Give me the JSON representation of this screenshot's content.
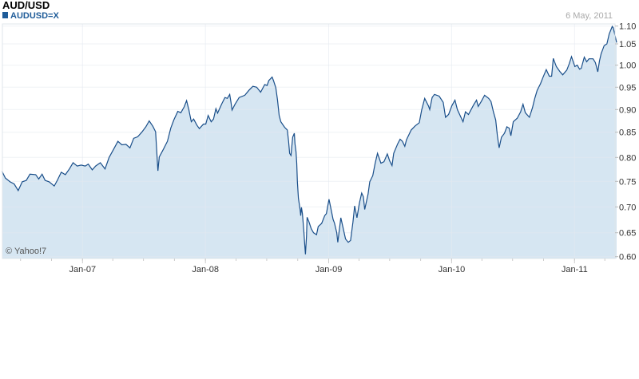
{
  "header": {
    "title": "AUD/USD",
    "symbol": "AUDUSD=X",
    "date": "6 May, 2011",
    "copyright": "© Yahoo!7"
  },
  "colors": {
    "line": "#1a4f8a",
    "fill": "#d6e6f2",
    "grid": "#e4eaf0",
    "legend_square": "#1f5c99"
  },
  "chart_data": {
    "type": "area",
    "title": "AUD/USD",
    "legend": [
      "AUDUSD=X"
    ],
    "legend_placement": "top-left",
    "grid": true,
    "ylim": [
      0.6,
      1.1
    ],
    "yticks": [
      "0.60",
      "0.65",
      "0.70",
      "0.75",
      "0.80",
      "0.85",
      "0.90",
      "0.95",
      "1.00",
      "1.05",
      "1.10"
    ],
    "xticks": [
      "Jan-07",
      "Jan-08",
      "Jan-09",
      "Jan-10",
      "Jan-11"
    ],
    "xlim": [
      "2006-05-07",
      "2011-05-06"
    ],
    "series": [
      {
        "points": [
          [
            "2006-05-07",
            0.771
          ],
          [
            "2006-05-17",
            0.757
          ],
          [
            "2006-05-31",
            0.749
          ],
          [
            "2006-06-12",
            0.745
          ],
          [
            "2006-06-24",
            0.732
          ],
          [
            "2006-07-06",
            0.749
          ],
          [
            "2006-07-18",
            0.752
          ],
          [
            "2006-07-29",
            0.765
          ],
          [
            "2006-08-15",
            0.764
          ],
          [
            "2006-08-24",
            0.755
          ],
          [
            "2006-09-03",
            0.765
          ],
          [
            "2006-09-12",
            0.752
          ],
          [
            "2006-09-24",
            0.749
          ],
          [
            "2006-10-09",
            0.741
          ],
          [
            "2006-10-18",
            0.752
          ],
          [
            "2006-10-30",
            0.769
          ],
          [
            "2006-11-11",
            0.764
          ],
          [
            "2006-11-23",
            0.776
          ],
          [
            "2006-12-04",
            0.789
          ],
          [
            "2006-12-16",
            0.782
          ],
          [
            "2006-12-28",
            0.784
          ],
          [
            "2007-01-09",
            0.782
          ],
          [
            "2007-01-18",
            0.786
          ],
          [
            "2007-01-30",
            0.774
          ],
          [
            "2007-02-09",
            0.782
          ],
          [
            "2007-02-23",
            0.789
          ],
          [
            "2007-03-09",
            0.776
          ],
          [
            "2007-03-21",
            0.8
          ],
          [
            "2007-04-04",
            0.817
          ],
          [
            "2007-04-16",
            0.832
          ],
          [
            "2007-04-28",
            0.825
          ],
          [
            "2007-05-10",
            0.826
          ],
          [
            "2007-05-22",
            0.819
          ],
          [
            "2007-06-02",
            0.838
          ],
          [
            "2007-06-14",
            0.841
          ],
          [
            "2007-06-26",
            0.85
          ],
          [
            "2007-07-08",
            0.862
          ],
          [
            "2007-07-18",
            0.875
          ],
          [
            "2007-07-29",
            0.863
          ],
          [
            "2007-08-06",
            0.851
          ],
          [
            "2007-08-13",
            0.772
          ],
          [
            "2007-08-17",
            0.801
          ],
          [
            "2007-08-29",
            0.816
          ],
          [
            "2007-09-10",
            0.832
          ],
          [
            "2007-09-20",
            0.859
          ],
          [
            "2007-09-29",
            0.877
          ],
          [
            "2007-10-11",
            0.896
          ],
          [
            "2007-10-20",
            0.893
          ],
          [
            "2007-10-30",
            0.906
          ],
          [
            "2007-11-06",
            0.92
          ],
          [
            "2007-11-13",
            0.899
          ],
          [
            "2007-11-20",
            0.873
          ],
          [
            "2007-11-27",
            0.879
          ],
          [
            "2007-12-07",
            0.865
          ],
          [
            "2007-12-14",
            0.858
          ],
          [
            "2007-12-26",
            0.868
          ],
          [
            "2008-01-02",
            0.868
          ],
          [
            "2008-01-09",
            0.887
          ],
          [
            "2008-01-18",
            0.873
          ],
          [
            "2008-01-25",
            0.879
          ],
          [
            "2008-02-01",
            0.902
          ],
          [
            "2008-02-06",
            0.892
          ],
          [
            "2008-02-18",
            0.912
          ],
          [
            "2008-02-28",
            0.927
          ],
          [
            "2008-03-06",
            0.925
          ],
          [
            "2008-03-13",
            0.934
          ],
          [
            "2008-03-17",
            0.916
          ],
          [
            "2008-03-20",
            0.899
          ],
          [
            "2008-03-29",
            0.912
          ],
          [
            "2008-04-10",
            0.927
          ],
          [
            "2008-04-27",
            0.932
          ],
          [
            "2008-05-09",
            0.943
          ],
          [
            "2008-05-21",
            0.952
          ],
          [
            "2008-06-01",
            0.95
          ],
          [
            "2008-06-13",
            0.939
          ],
          [
            "2008-06-25",
            0.956
          ],
          [
            "2008-07-02",
            0.954
          ],
          [
            "2008-07-07",
            0.965
          ],
          [
            "2008-07-17",
            0.973
          ],
          [
            "2008-07-21",
            0.965
          ],
          [
            "2008-07-28",
            0.949
          ],
          [
            "2008-08-02",
            0.922
          ],
          [
            "2008-08-07",
            0.887
          ],
          [
            "2008-08-12",
            0.873
          ],
          [
            "2008-08-23",
            0.861
          ],
          [
            "2008-08-31",
            0.855
          ],
          [
            "2008-09-04",
            0.832
          ],
          [
            "2008-09-07",
            0.808
          ],
          [
            "2008-09-11",
            0.804
          ],
          [
            "2008-09-16",
            0.84
          ],
          [
            "2008-09-21",
            0.848
          ],
          [
            "2008-09-23",
            0.827
          ],
          [
            "2008-09-26",
            0.811
          ],
          [
            "2008-09-28",
            0.788
          ],
          [
            "2008-09-30",
            0.75
          ],
          [
            "2008-10-03",
            0.717
          ],
          [
            "2008-10-08",
            0.695
          ],
          [
            "2008-10-10",
            0.683
          ],
          [
            "2008-10-12",
            0.699
          ],
          [
            "2008-10-15",
            0.687
          ],
          [
            "2008-10-19",
            0.655
          ],
          [
            "2008-10-22",
            0.623
          ],
          [
            "2008-10-24",
            0.605
          ],
          [
            "2008-10-27",
            0.642
          ],
          [
            "2008-10-29",
            0.68
          ],
          [
            "2008-11-03",
            0.672
          ],
          [
            "2008-11-10",
            0.658
          ],
          [
            "2008-11-17",
            0.65
          ],
          [
            "2008-11-26",
            0.646
          ],
          [
            "2008-12-01",
            0.662
          ],
          [
            "2008-12-11",
            0.668
          ],
          [
            "2008-12-20",
            0.683
          ],
          [
            "2008-12-25",
            0.687
          ],
          [
            "2009-01-02",
            0.715
          ],
          [
            "2009-01-06",
            0.702
          ],
          [
            "2009-01-14",
            0.676
          ],
          [
            "2009-01-18",
            0.669
          ],
          [
            "2009-01-25",
            0.65
          ],
          [
            "2009-01-28",
            0.63
          ],
          [
            "2009-02-06",
            0.679
          ],
          [
            "2009-02-13",
            0.659
          ],
          [
            "2009-02-20",
            0.637
          ],
          [
            "2009-02-28",
            0.63
          ],
          [
            "2009-03-07",
            0.634
          ],
          [
            "2009-03-14",
            0.671
          ],
          [
            "2009-03-19",
            0.702
          ],
          [
            "2009-03-26",
            0.679
          ],
          [
            "2009-04-02",
            0.707
          ],
          [
            "2009-04-09",
            0.727
          ],
          [
            "2009-04-14",
            0.72
          ],
          [
            "2009-04-18",
            0.695
          ],
          [
            "2009-04-28",
            0.725
          ],
          [
            "2009-05-03",
            0.749
          ],
          [
            "2009-05-12",
            0.762
          ],
          [
            "2009-05-19",
            0.788
          ],
          [
            "2009-05-26",
            0.808
          ],
          [
            "2009-06-05",
            0.788
          ],
          [
            "2009-06-14",
            0.791
          ],
          [
            "2009-06-24",
            0.807
          ],
          [
            "2009-07-01",
            0.793
          ],
          [
            "2009-07-08",
            0.783
          ],
          [
            "2009-07-13",
            0.808
          ],
          [
            "2009-07-25",
            0.827
          ],
          [
            "2009-08-01",
            0.836
          ],
          [
            "2009-08-08",
            0.832
          ],
          [
            "2009-08-15",
            0.822
          ],
          [
            "2009-08-20",
            0.835
          ],
          [
            "2009-08-22",
            0.838
          ],
          [
            "2009-09-03",
            0.855
          ],
          [
            "2009-09-15",
            0.864
          ],
          [
            "2009-09-27",
            0.871
          ],
          [
            "2009-10-04",
            0.899
          ],
          [
            "2009-10-13",
            0.925
          ],
          [
            "2009-10-25",
            0.907
          ],
          [
            "2009-10-28",
            0.9
          ],
          [
            "2009-11-04",
            0.927
          ],
          [
            "2009-11-11",
            0.934
          ],
          [
            "2009-11-25",
            0.93
          ],
          [
            "2009-12-07",
            0.916
          ],
          [
            "2009-12-14",
            0.883
          ],
          [
            "2009-12-23",
            0.889
          ],
          [
            "2010-01-02",
            0.909
          ],
          [
            "2010-01-11",
            0.921
          ],
          [
            "2010-01-18",
            0.9
          ],
          [
            "2010-01-28",
            0.884
          ],
          [
            "2010-02-04",
            0.873
          ],
          [
            "2010-02-11",
            0.895
          ],
          [
            "2010-02-20",
            0.889
          ],
          [
            "2010-03-07",
            0.91
          ],
          [
            "2010-03-16",
            0.921
          ],
          [
            "2010-03-21",
            0.907
          ],
          [
            "2010-03-30",
            0.918
          ],
          [
            "2010-04-09",
            0.932
          ],
          [
            "2010-04-21",
            0.925
          ],
          [
            "2010-04-28",
            0.918
          ],
          [
            "2010-05-05",
            0.895
          ],
          [
            "2010-05-12",
            0.877
          ],
          [
            "2010-05-17",
            0.843
          ],
          [
            "2010-05-22",
            0.819
          ],
          [
            "2010-05-29",
            0.84
          ],
          [
            "2010-06-07",
            0.848
          ],
          [
            "2010-06-14",
            0.862
          ],
          [
            "2010-06-21",
            0.859
          ],
          [
            "2010-06-26",
            0.843
          ],
          [
            "2010-07-03",
            0.873
          ],
          [
            "2010-07-15",
            0.881
          ],
          [
            "2010-07-25",
            0.895
          ],
          [
            "2010-08-01",
            0.912
          ],
          [
            "2010-08-08",
            0.893
          ],
          [
            "2010-08-20",
            0.883
          ],
          [
            "2010-08-29",
            0.904
          ],
          [
            "2010-09-05",
            0.925
          ],
          [
            "2010-09-12",
            0.943
          ],
          [
            "2010-09-22",
            0.958
          ],
          [
            "2010-09-29",
            0.972
          ],
          [
            "2010-10-09",
            0.99
          ],
          [
            "2010-10-18",
            0.975
          ],
          [
            "2010-10-25",
            0.975
          ],
          [
            "2010-10-30",
            1.016
          ],
          [
            "2010-11-08",
            0.997
          ],
          [
            "2010-11-18",
            0.986
          ],
          [
            "2010-11-27",
            0.978
          ],
          [
            "2010-12-09",
            0.989
          ],
          [
            "2010-12-16",
            1.003
          ],
          [
            "2010-12-23",
            1.02
          ],
          [
            "2011-01-02",
            0.997
          ],
          [
            "2011-01-09",
            1.0
          ],
          [
            "2011-01-16",
            0.991
          ],
          [
            "2011-01-21",
            0.993
          ],
          [
            "2011-01-30",
            1.019
          ],
          [
            "2011-02-06",
            1.008
          ],
          [
            "2011-02-13",
            1.015
          ],
          [
            "2011-02-25",
            1.015
          ],
          [
            "2011-03-04",
            1.006
          ],
          [
            "2011-03-11",
            0.985
          ],
          [
            "2011-03-16",
            1.01
          ],
          [
            "2011-03-21",
            1.027
          ],
          [
            "2011-03-30",
            1.046
          ],
          [
            "2011-04-07",
            1.05
          ],
          [
            "2011-04-14",
            1.078
          ],
          [
            "2011-04-23",
            1.099
          ],
          [
            "2011-04-26",
            1.095
          ],
          [
            "2011-05-06",
            1.054
          ]
        ]
      }
    ]
  }
}
